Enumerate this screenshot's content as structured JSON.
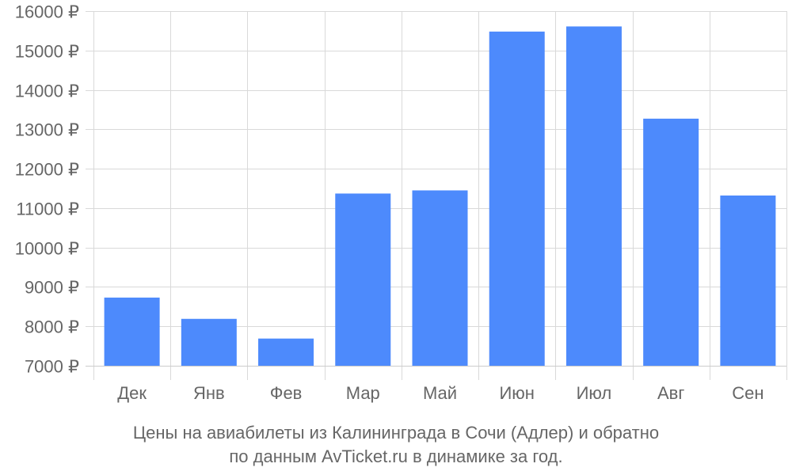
{
  "chart_data": {
    "type": "bar",
    "categories": [
      "Дек",
      "Янв",
      "Фев",
      "Мар",
      "Май",
      "Июн",
      "Июл",
      "Авг",
      "Сен"
    ],
    "values": [
      8730,
      8190,
      7690,
      11370,
      11450,
      15480,
      15610,
      13270,
      11320
    ],
    "ylim": [
      7000,
      16000
    ],
    "yticks": [
      7000,
      8000,
      9000,
      10000,
      11000,
      12000,
      13000,
      14000,
      15000,
      16000
    ],
    "ytick_suffix": " ₽",
    "bar_color": "#4d8afc",
    "grid": true,
    "caption_line1": "Цены на авиабилеты из Калининграда в Сочи (Адлер) и обратно",
    "caption_line2": "по данным AvTicket.ru в динамике за год."
  }
}
